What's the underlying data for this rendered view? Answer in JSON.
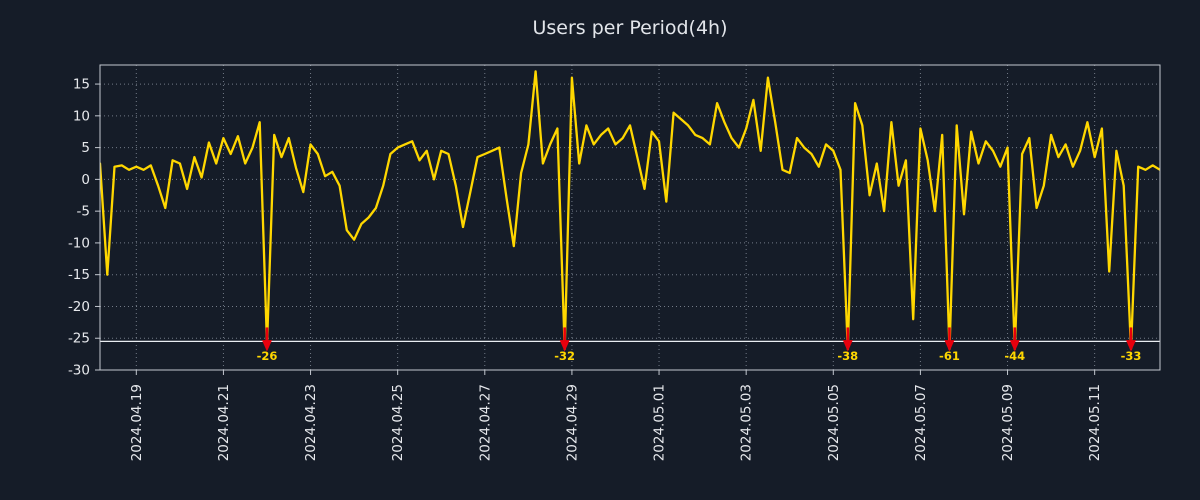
{
  "page": {
    "background": "#151c28"
  },
  "chart_data": {
    "type": "line",
    "title": "Users per Period(4h)",
    "series": [
      {
        "name": "users",
        "color": "#ffd700",
        "values": [
          2.5,
          -15,
          2,
          2.2,
          1.5,
          2,
          1.5,
          2.2,
          -1,
          -4.5,
          3,
          2.5,
          -1.5,
          3.5,
          0.3,
          5.8,
          2.5,
          6.5,
          4,
          6.8,
          2.5,
          5,
          9,
          -26,
          7,
          3.5,
          6.5,
          1.8,
          -2,
          5.5,
          4,
          0.5,
          1.2,
          -1,
          -8,
          -9.5,
          -7,
          -6,
          -4.5,
          -1,
          4,
          5,
          5.5,
          6,
          3,
          4.5,
          0,
          4.5,
          4,
          -1,
          -7.5,
          -2,
          3.5,
          4,
          4.5,
          5,
          -3,
          -10.5,
          1,
          5.5,
          17,
          2.5,
          5.5,
          8,
          -32,
          16,
          2.5,
          8.5,
          5.5,
          7,
          8,
          5.5,
          6.5,
          8.5,
          3.5,
          -1.5,
          7.5,
          6,
          -3.5,
          10.5,
          9.5,
          8.5,
          7,
          6.5,
          5.5,
          12,
          9,
          6.5,
          5,
          8,
          12.5,
          4.5,
          16,
          9,
          1.5,
          1,
          6.5,
          5,
          4,
          2,
          5.5,
          4.5,
          1.5,
          -38,
          12,
          8.5,
          -2.5,
          2.5,
          -5,
          9,
          -1,
          3,
          -22,
          8,
          3,
          -5,
          7,
          -61,
          8.5,
          -5.5,
          7.5,
          2.5,
          6,
          4.5,
          2,
          5,
          -44,
          4,
          6.5,
          -4.5,
          -1,
          7,
          3.5,
          5.5,
          2,
          4.5,
          9,
          3.5,
          8,
          -14.5,
          4.5,
          -1,
          -33,
          2,
          1.5,
          2.2,
          1.5
        ]
      }
    ],
    "x_range": [
      0,
      146
    ],
    "x_tick_indices": [
      5,
      17,
      29,
      41,
      53,
      65,
      77,
      89,
      101,
      113,
      125,
      137
    ],
    "x_tick_labels": [
      "2024.04.19",
      "2024.04.21",
      "2024.04.23",
      "2024.04.25",
      "2024.04.27",
      "2024.04.29",
      "2024.05.01",
      "2024.05.03",
      "2024.05.05",
      "2024.05.07",
      "2024.05.09",
      "2024.05.11"
    ],
    "y_range": [
      -30,
      18
    ],
    "y_ticks": [
      15,
      10,
      5,
      0,
      -5,
      -10,
      -15,
      -20,
      -25,
      -30
    ],
    "threshold": {
      "value": -25.5,
      "color": "#e9edf2"
    },
    "annotations": [
      {
        "index": 23,
        "label": "-26"
      },
      {
        "index": 64,
        "label": "-32"
      },
      {
        "index": 103,
        "label": "-38"
      },
      {
        "index": 117,
        "label": "-61"
      },
      {
        "index": 126,
        "label": "-44"
      },
      {
        "index": 142,
        "label": "-33"
      }
    ],
    "marker_color": "#e8000d",
    "annotation_text_color": "#ffd700",
    "grid": true,
    "grid_color": "#9aa3b0",
    "axis_color": "#c3c8d0",
    "tick_label_color": "#e6e8ec",
    "title_color": "#e2e5ea",
    "legend": false
  }
}
